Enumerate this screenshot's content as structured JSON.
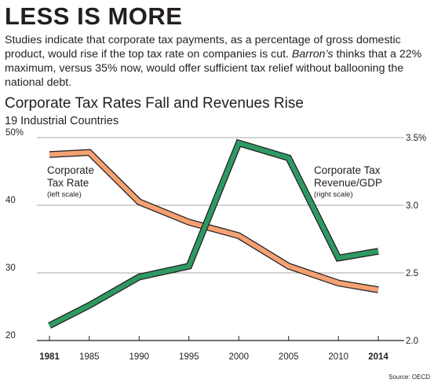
{
  "headline": "LESS IS MORE",
  "intro": {
    "part1": "Studies indicate that corporate tax payments, as a percentage of gross domestic product, would rise if the top tax rate on companies is cut. ",
    "italic": "Barron’s",
    "part2": " thinks that a 22% maximum, versus 35% now, would offer sufficient tax relief without ballooning the national debt."
  },
  "source": "Source: OECD",
  "chart_data": {
    "type": "line",
    "title": "Corporate Tax Rates Fall and Revenues Rise",
    "subtitle": "19 Industrial Countries",
    "x": [
      1981,
      1985,
      1990,
      1995,
      2000,
      2005,
      2010,
      2014
    ],
    "x_tick_labels": [
      "1981",
      "1985",
      "1990",
      "1995",
      "2000",
      "2005",
      "2010",
      "2014"
    ],
    "left_axis": {
      "ylim": [
        20,
        50
      ],
      "ticks": [
        "50%",
        "40",
        "30",
        "20"
      ]
    },
    "right_axis": {
      "ylim": [
        2.0,
        3.5
      ],
      "ticks": [
        "3.5%",
        "3.0",
        "2.5",
        "2.0"
      ]
    },
    "grid": true,
    "series": [
      {
        "name": "Corporate Tax Rate",
        "label_lines": [
          "Corporate",
          "Tax Rate"
        ],
        "note": "(left scale)",
        "axis": "left",
        "color": "#f4a173",
        "values": [
          47.5,
          47.8,
          40.5,
          37.5,
          35.5,
          31.0,
          28.5,
          27.5
        ]
      },
      {
        "name": "Corporate Tax Revenue/GDP",
        "label_lines": [
          "Corporate Tax",
          "Revenue/GDP"
        ],
        "note": "(right scale)",
        "axis": "right",
        "color": "#2e9a63",
        "values": [
          2.11,
          2.26,
          2.47,
          2.55,
          3.46,
          3.35,
          2.61,
          2.66
        ]
      }
    ]
  }
}
